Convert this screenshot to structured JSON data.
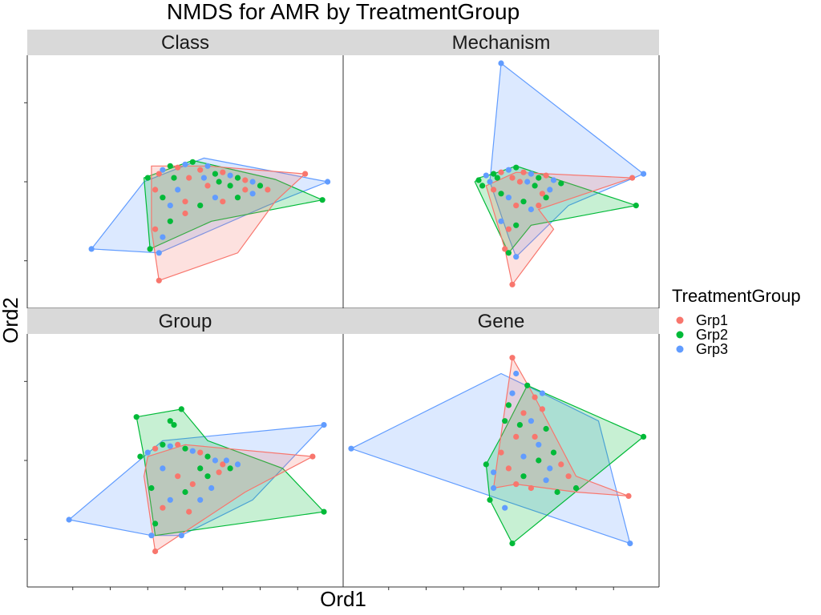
{
  "chart_data": {
    "type": "scatter",
    "title": "NMDS for AMR by TreatmentGroup",
    "xlabel": "Ord1",
    "ylabel": "Ord2",
    "legend": {
      "title": "TreatmentGroup",
      "placement": "right",
      "entries": [
        {
          "name": "Grp1",
          "color": "#F8766D"
        },
        {
          "name": "Grp2",
          "color": "#00BA38"
        },
        {
          "name": "Grp3",
          "color": "#619CFF"
        }
      ]
    },
    "xlim": [
      -2,
      2
    ],
    "ylim": [
      -1.5,
      1.5
    ],
    "tick_labels_visible": false,
    "panels": [
      {
        "name": "Class",
        "hulls": {
          "Grp1": [
            [
              0.3,
              0.2
            ],
            [
              1.6,
              0.1
            ],
            [
              1.2,
              -0.25
            ],
            [
              0.7,
              -0.9
            ],
            [
              -0.35,
              -1.25
            ],
            [
              -0.45,
              -0.6
            ],
            [
              -0.45,
              0.2
            ]
          ],
          "Grp2": [
            [
              -0.55,
              0.05
            ],
            [
              0.1,
              0.27
            ],
            [
              1.2,
              0.03
            ],
            [
              1.83,
              -0.23
            ],
            [
              0.35,
              -0.5
            ],
            [
              -0.47,
              -0.85
            ],
            [
              -0.5,
              -0.5
            ]
          ],
          "Grp3": [
            [
              0.25,
              0.3
            ],
            [
              1.9,
              0.0
            ],
            [
              1.1,
              -0.3
            ],
            [
              -0.35,
              -0.9
            ],
            [
              -1.25,
              -0.85
            ],
            [
              -0.55,
              0.0
            ]
          ]
        },
        "points": [
          [
            -0.5,
            0.05,
            "Grp2"
          ],
          [
            -0.3,
            0.15,
            "Grp3"
          ],
          [
            -0.2,
            0.2,
            "Grp2"
          ],
          [
            -0.1,
            0.18,
            "Grp1"
          ],
          [
            0.0,
            0.22,
            "Grp3"
          ],
          [
            0.1,
            0.25,
            "Grp2"
          ],
          [
            0.2,
            0.15,
            "Grp1"
          ],
          [
            0.3,
            0.2,
            "Grp3"
          ],
          [
            0.4,
            0.1,
            "Grp2"
          ],
          [
            0.5,
            0.12,
            "Grp1"
          ],
          [
            0.6,
            0.08,
            "Grp3"
          ],
          [
            0.7,
            0.05,
            "Grp2"
          ],
          [
            0.8,
            0.02,
            "Grp1"
          ],
          [
            0.9,
            0.0,
            "Grp3"
          ],
          [
            1.0,
            -0.05,
            "Grp2"
          ],
          [
            1.1,
            -0.1,
            "Grp1"
          ],
          [
            1.6,
            0.1,
            "Grp1"
          ],
          [
            1.9,
            0.0,
            "Grp3"
          ],
          [
            1.83,
            -0.23,
            "Grp2"
          ],
          [
            -0.4,
            -0.1,
            "Grp1"
          ],
          [
            -0.3,
            -0.2,
            "Grp2"
          ],
          [
            -0.2,
            -0.3,
            "Grp3"
          ],
          [
            0.0,
            -0.25,
            "Grp1"
          ],
          [
            0.2,
            -0.3,
            "Grp2"
          ],
          [
            0.4,
            -0.2,
            "Grp3"
          ],
          [
            0.5,
            -0.25,
            "Grp1"
          ],
          [
            0.7,
            -0.2,
            "Grp2"
          ],
          [
            0.9,
            -0.15,
            "Grp3"
          ],
          [
            -0.4,
            -0.6,
            "Grp1"
          ],
          [
            -0.3,
            -0.7,
            "Grp3"
          ],
          [
            -0.2,
            -0.5,
            "Grp2"
          ],
          [
            0.0,
            -0.4,
            "Grp1"
          ],
          [
            -0.47,
            -0.85,
            "Grp2"
          ],
          [
            -0.35,
            -0.9,
            "Grp3"
          ],
          [
            -0.35,
            -1.25,
            "Grp1"
          ],
          [
            -1.25,
            -0.85,
            "Grp3"
          ],
          [
            -0.1,
            -0.1,
            "Grp3"
          ],
          [
            0.3,
            -0.05,
            "Grp1"
          ],
          [
            0.6,
            -0.05,
            "Grp2"
          ],
          [
            0.8,
            -0.1,
            "Grp1"
          ],
          [
            -0.15,
            0.05,
            "Grp2"
          ],
          [
            0.05,
            0.05,
            "Grp1"
          ],
          [
            0.25,
            0.05,
            "Grp3"
          ],
          [
            0.45,
            0.0,
            "Grp2"
          ],
          [
            -0.35,
            0.1,
            "Grp1"
          ]
        ]
      },
      {
        "name": "Mechanism",
        "hulls": {
          "Grp1": [
            [
              0.2,
              0.12
            ],
            [
              1.75,
              0.05
            ],
            [
              0.5,
              -0.35
            ],
            [
              0.7,
              -0.6
            ],
            [
              0.15,
              -1.3
            ],
            [
              0.05,
              -0.85
            ],
            [
              -0.2,
              -0.05
            ]
          ],
          "Grp2": [
            [
              -0.1,
              0.1
            ],
            [
              0.2,
              0.2
            ],
            [
              1.8,
              -0.3
            ],
            [
              0.4,
              -0.55
            ],
            [
              0.1,
              -0.9
            ],
            [
              -0.35,
              0.0
            ],
            [
              -0.3,
              0.05
            ]
          ],
          "Grp3": [
            [
              0.0,
              1.5
            ],
            [
              1.9,
              0.1
            ],
            [
              0.9,
              -0.3
            ],
            [
              0.2,
              -0.95
            ],
            [
              0.1,
              -0.7
            ],
            [
              -0.15,
              0.0
            ]
          ]
        },
        "points": [
          [
            -0.3,
            0.02,
            "Grp2"
          ],
          [
            -0.2,
            0.08,
            "Grp3"
          ],
          [
            -0.1,
            0.1,
            "Grp2"
          ],
          [
            0.0,
            0.12,
            "Grp1"
          ],
          [
            0.1,
            0.15,
            "Grp3"
          ],
          [
            0.2,
            0.18,
            "Grp2"
          ],
          [
            0.3,
            0.12,
            "Grp1"
          ],
          [
            0.4,
            0.1,
            "Grp3"
          ],
          [
            0.5,
            0.05,
            "Grp2"
          ],
          [
            0.6,
            0.08,
            "Grp1"
          ],
          [
            0.7,
            0.02,
            "Grp3"
          ],
          [
            0.8,
            -0.02,
            "Grp2"
          ],
          [
            1.75,
            0.05,
            "Grp1"
          ],
          [
            1.9,
            0.1,
            "Grp3"
          ],
          [
            1.8,
            -0.3,
            "Grp2"
          ],
          [
            0.0,
            1.5,
            "Grp3"
          ],
          [
            -0.1,
            -0.1,
            "Grp1"
          ],
          [
            0.0,
            -0.15,
            "Grp2"
          ],
          [
            0.1,
            -0.2,
            "Grp3"
          ],
          [
            0.2,
            -0.3,
            "Grp1"
          ],
          [
            0.3,
            -0.25,
            "Grp2"
          ],
          [
            0.4,
            -0.35,
            "Grp3"
          ],
          [
            0.5,
            -0.3,
            "Grp1"
          ],
          [
            0.6,
            -0.2,
            "Grp2"
          ],
          [
            0.0,
            -0.5,
            "Grp3"
          ],
          [
            0.1,
            -0.6,
            "Grp1"
          ],
          [
            0.2,
            -0.55,
            "Grp2"
          ],
          [
            0.05,
            -0.85,
            "Grp1"
          ],
          [
            0.1,
            -0.9,
            "Grp2"
          ],
          [
            0.2,
            -0.95,
            "Grp3"
          ],
          [
            0.15,
            -1.3,
            "Grp1"
          ],
          [
            -0.15,
            0.0,
            "Grp3"
          ],
          [
            0.25,
            0.0,
            "Grp1"
          ],
          [
            0.45,
            -0.05,
            "Grp2"
          ],
          [
            0.65,
            -0.1,
            "Grp3"
          ],
          [
            -0.05,
            0.05,
            "Grp2"
          ],
          [
            0.15,
            0.05,
            "Grp1"
          ],
          [
            0.35,
            0.0,
            "Grp3"
          ],
          [
            0.55,
            -0.15,
            "Grp1"
          ],
          [
            -0.25,
            -0.05,
            "Grp2"
          ]
        ]
      },
      {
        "name": "Group",
        "hulls": {
          "Grp1": [
            [
              0.0,
              0.2
            ],
            [
              1.7,
              0.05
            ],
            [
              0.8,
              -0.4
            ],
            [
              -0.4,
              -1.15
            ],
            [
              -0.55,
              -0.2
            ],
            [
              -0.5,
              0.05
            ]
          ],
          "Grp2": [
            [
              -0.65,
              0.55
            ],
            [
              -0.05,
              0.65
            ],
            [
              0.3,
              0.25
            ],
            [
              1.3,
              -0.1
            ],
            [
              1.85,
              -0.65
            ],
            [
              -0.4,
              -0.95
            ],
            [
              -0.55,
              0.05
            ]
          ],
          "Grp3": [
            [
              -0.3,
              0.25
            ],
            [
              1.85,
              0.45
            ],
            [
              0.9,
              -0.5
            ],
            [
              -0.05,
              -0.95
            ],
            [
              -0.45,
              -0.95
            ],
            [
              -1.55,
              -0.75
            ]
          ]
        },
        "points": [
          [
            -0.6,
            0.05,
            "Grp2"
          ],
          [
            -0.5,
            0.1,
            "Grp3"
          ],
          [
            -0.4,
            0.15,
            "Grp1"
          ],
          [
            -0.3,
            0.2,
            "Grp2"
          ],
          [
            -0.2,
            0.18,
            "Grp3"
          ],
          [
            -0.1,
            0.2,
            "Grp1"
          ],
          [
            0.0,
            0.15,
            "Grp2"
          ],
          [
            0.1,
            0.12,
            "Grp3"
          ],
          [
            0.2,
            0.1,
            "Grp1"
          ],
          [
            0.3,
            0.05,
            "Grp2"
          ],
          [
            0.4,
            0.0,
            "Grp3"
          ],
          [
            0.5,
            -0.05,
            "Grp1"
          ],
          [
            0.6,
            -0.1,
            "Grp2"
          ],
          [
            0.7,
            -0.05,
            "Grp3"
          ],
          [
            1.7,
            0.05,
            "Grp1"
          ],
          [
            1.85,
            0.45,
            "Grp3"
          ],
          [
            1.85,
            -0.65,
            "Grp2"
          ],
          [
            -0.65,
            0.55,
            "Grp2"
          ],
          [
            -0.05,
            0.65,
            "Grp2"
          ],
          [
            -0.2,
            0.5,
            "Grp2"
          ],
          [
            -0.15,
            0.45,
            "Grp2"
          ],
          [
            -1.55,
            -0.75,
            "Grp3"
          ],
          [
            -0.4,
            -1.15,
            "Grp1"
          ],
          [
            -0.45,
            -0.95,
            "Grp3"
          ],
          [
            -0.05,
            -0.95,
            "Grp3"
          ],
          [
            -0.4,
            -0.8,
            "Grp2"
          ],
          [
            -0.3,
            -0.6,
            "Grp1"
          ],
          [
            -0.2,
            -0.5,
            "Grp3"
          ],
          [
            0.0,
            -0.4,
            "Grp2"
          ],
          [
            0.1,
            -0.3,
            "Grp1"
          ],
          [
            0.2,
            -0.5,
            "Grp3"
          ],
          [
            0.3,
            -0.2,
            "Grp2"
          ],
          [
            -0.1,
            -0.2,
            "Grp1"
          ],
          [
            -0.3,
            -0.1,
            "Grp3"
          ],
          [
            0.2,
            -0.1,
            "Grp2"
          ],
          [
            0.45,
            -0.15,
            "Grp1"
          ],
          [
            0.55,
            0.0,
            "Grp3"
          ],
          [
            -0.45,
            -0.35,
            "Grp2"
          ],
          [
            0.05,
            -0.65,
            "Grp1"
          ],
          [
            0.35,
            -0.35,
            "Grp3"
          ]
        ]
      },
      {
        "name": "Gene",
        "hulls": {
          "Grp1": [
            [
              0.15,
              1.3
            ],
            [
              0.45,
              0.8
            ],
            [
              1.0,
              -0.2
            ],
            [
              1.7,
              -0.45
            ],
            [
              1.0,
              -0.4
            ],
            [
              0.2,
              -0.3
            ],
            [
              -0.1,
              -0.35
            ],
            [
              -0.05,
              0.0
            ]
          ],
          "Grp2": [
            [
              0.35,
              0.95
            ],
            [
              1.9,
              0.3
            ],
            [
              0.15,
              -1.05
            ],
            [
              -0.15,
              -0.5
            ],
            [
              -0.2,
              -0.05
            ],
            [
              0.0,
              0.3
            ]
          ],
          "Grp3": [
            [
              0.0,
              1.1
            ],
            [
              0.55,
              0.85
            ],
            [
              1.3,
              0.5
            ],
            [
              1.72,
              -1.05
            ],
            [
              -2.0,
              0.15
            ]
          ]
        },
        "points": [
          [
            0.15,
            1.3,
            "Grp1"
          ],
          [
            0.2,
            1.1,
            "Grp3"
          ],
          [
            0.35,
            0.95,
            "Grp2"
          ],
          [
            0.45,
            0.8,
            "Grp1"
          ],
          [
            0.55,
            0.85,
            "Grp3"
          ],
          [
            0.1,
            0.7,
            "Grp2"
          ],
          [
            0.3,
            0.6,
            "Grp1"
          ],
          [
            0.4,
            0.5,
            "Grp3"
          ],
          [
            0.6,
            0.4,
            "Grp2"
          ],
          [
            0.2,
            0.3,
            "Grp1"
          ],
          [
            0.5,
            0.2,
            "Grp3"
          ],
          [
            0.7,
            0.1,
            "Grp2"
          ],
          [
            0.0,
            0.1,
            "Grp1"
          ],
          [
            0.3,
            0.05,
            "Grp3"
          ],
          [
            0.5,
            0.0,
            "Grp2"
          ],
          [
            0.8,
            -0.05,
            "Grp1"
          ],
          [
            -0.2,
            -0.05,
            "Grp2"
          ],
          [
            -0.1,
            -0.15,
            "Grp3"
          ],
          [
            0.1,
            -0.1,
            "Grp1"
          ],
          [
            0.3,
            -0.2,
            "Grp2"
          ],
          [
            0.6,
            -0.25,
            "Grp3"
          ],
          [
            0.9,
            -0.2,
            "Grp1"
          ],
          [
            1.0,
            -0.35,
            "Grp2"
          ],
          [
            0.2,
            -0.3,
            "Grp1"
          ],
          [
            -0.1,
            -0.35,
            "Grp3"
          ],
          [
            -0.15,
            -0.5,
            "Grp2"
          ],
          [
            1.7,
            -0.45,
            "Grp1"
          ],
          [
            1.9,
            0.3,
            "Grp2"
          ],
          [
            1.72,
            -1.05,
            "Grp3"
          ],
          [
            0.15,
            -1.05,
            "Grp2"
          ],
          [
            -2.0,
            0.15,
            "Grp3"
          ],
          [
            0.05,
            -0.6,
            "Grp3"
          ],
          [
            0.4,
            -0.35,
            "Grp1"
          ],
          [
            0.75,
            -0.4,
            "Grp2"
          ],
          [
            0.25,
            0.45,
            "Grp2"
          ],
          [
            0.55,
            0.65,
            "Grp1"
          ],
          [
            0.15,
            0.85,
            "Grp3"
          ],
          [
            0.65,
            -0.1,
            "Grp3"
          ],
          [
            0.45,
            0.3,
            "Grp1"
          ],
          [
            0.05,
            0.5,
            "Grp2"
          ]
        ]
      }
    ]
  }
}
